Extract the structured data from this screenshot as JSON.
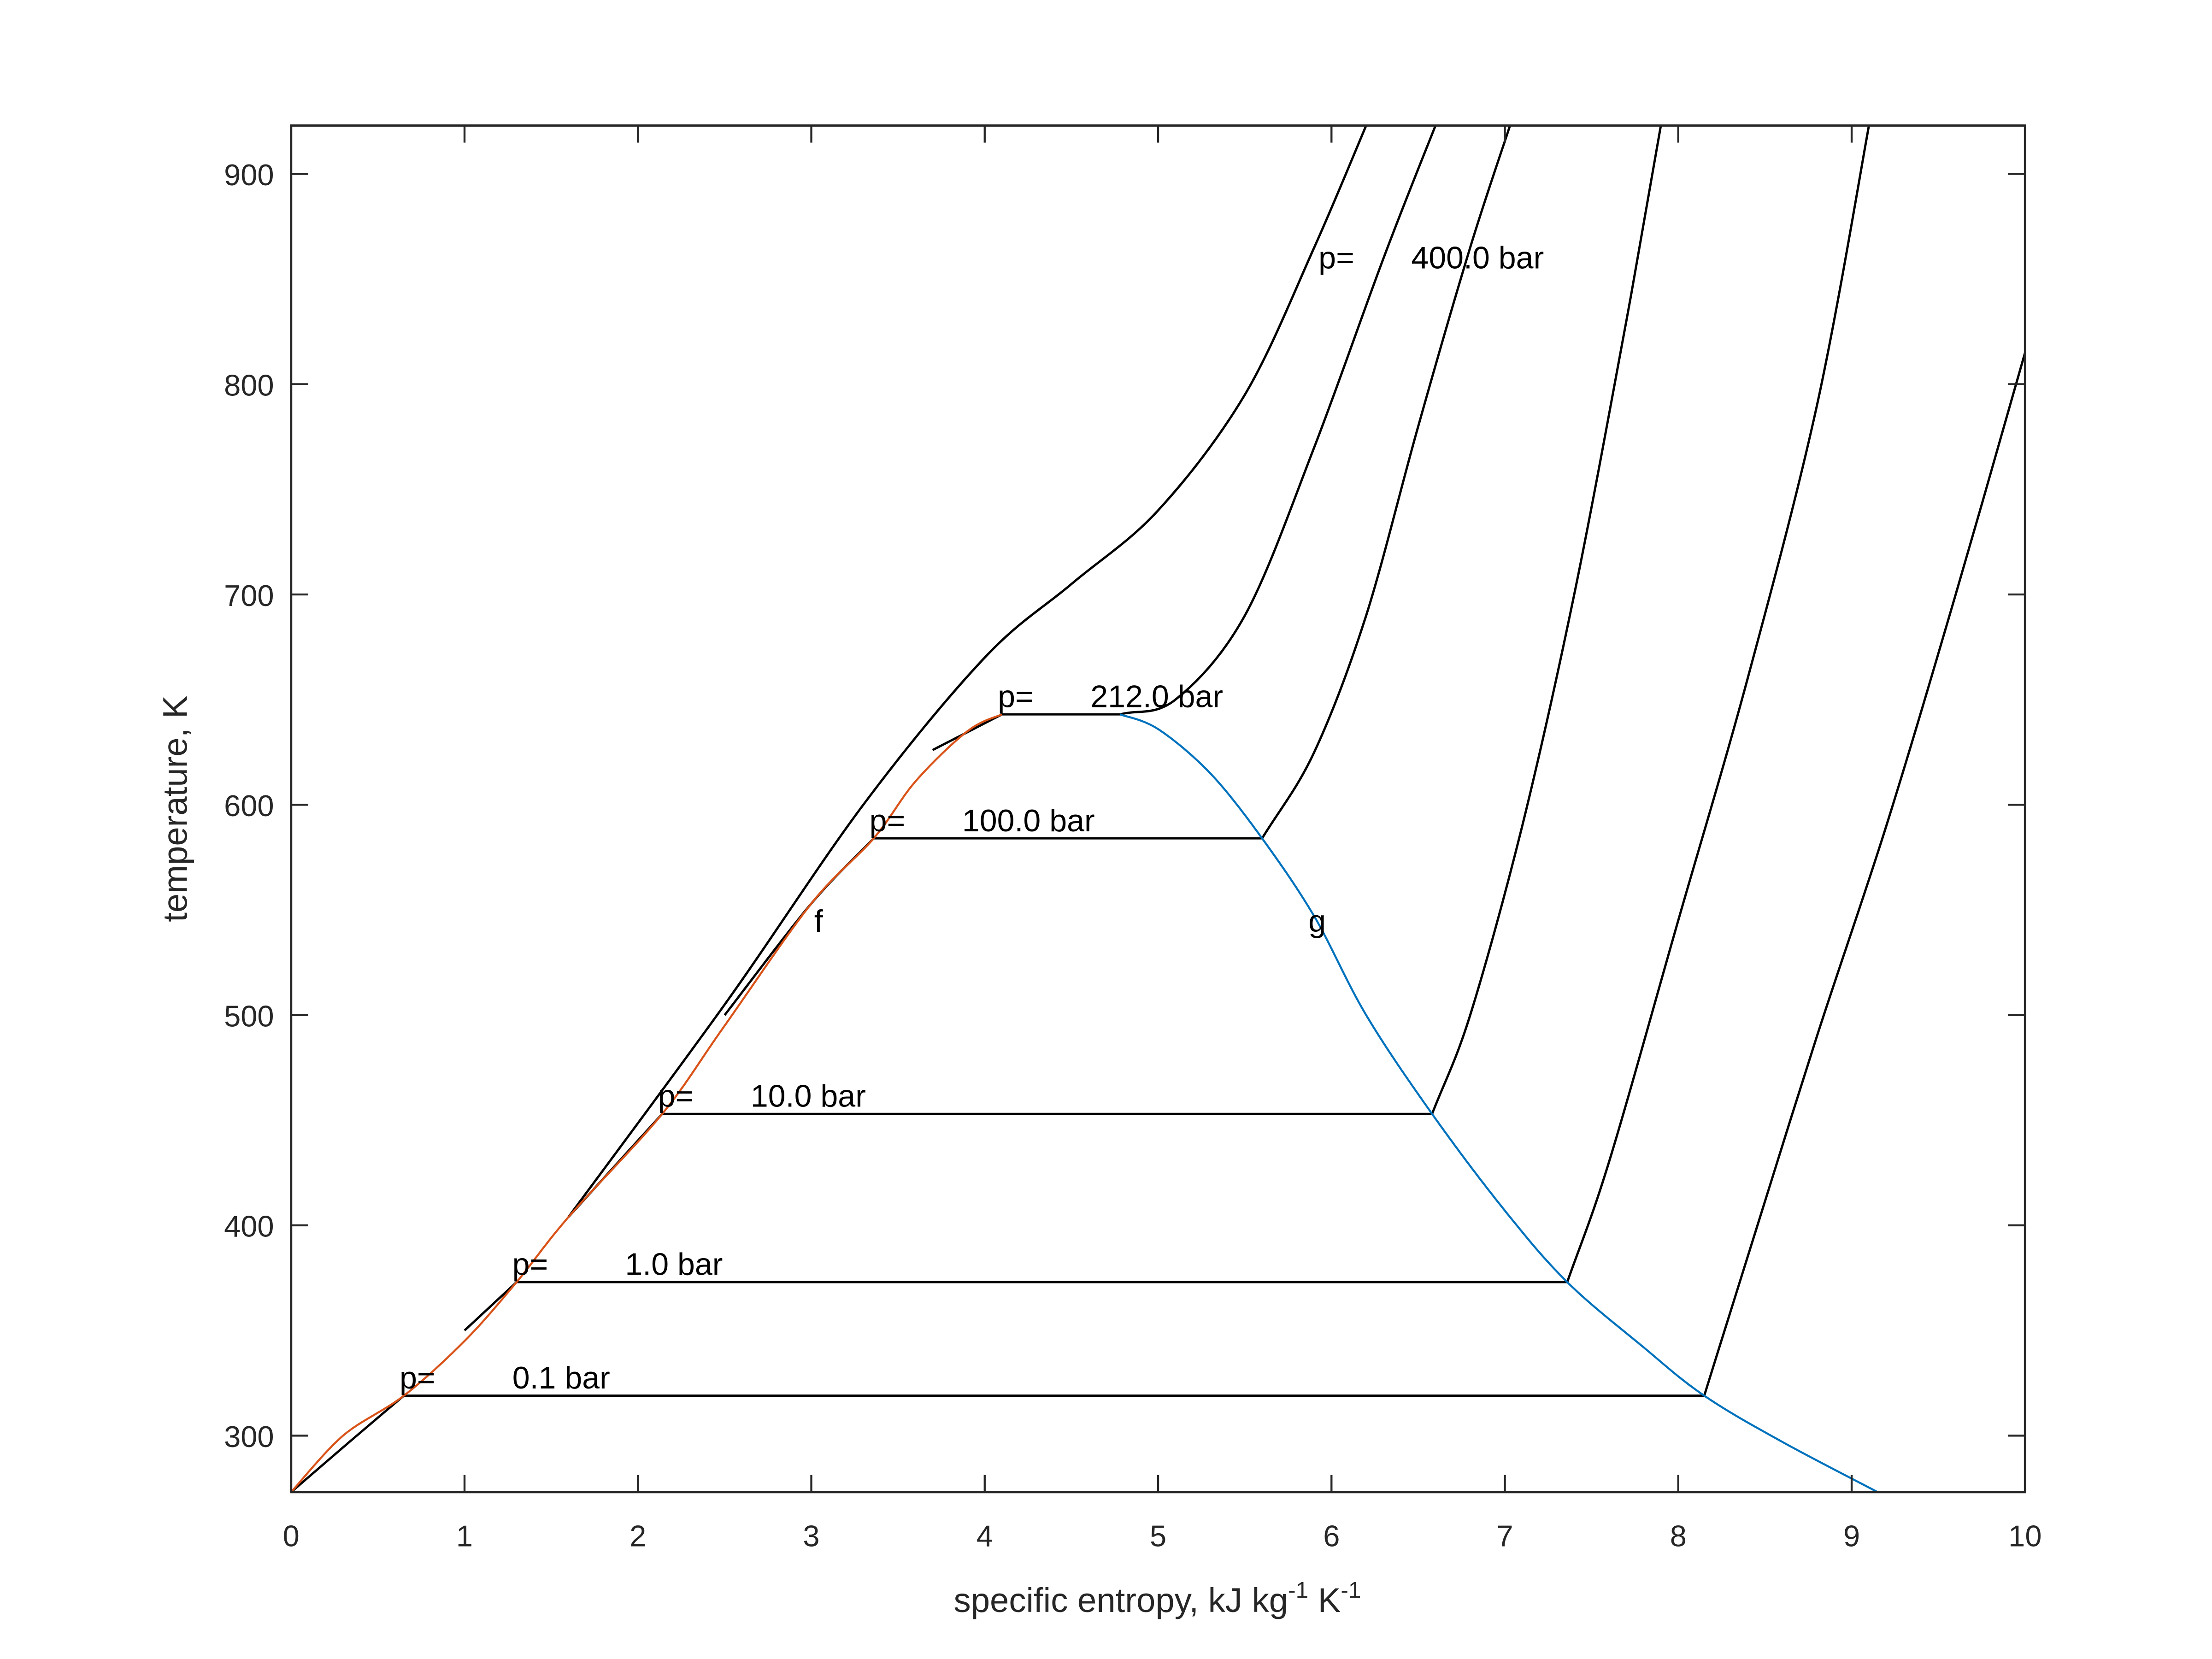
{
  "chart_data": {
    "type": "line",
    "title": "",
    "xlabel": "specific entropy, kJ kg^-1 K^-1",
    "xlabel_parts": {
      "base": "specific entropy, kJ kg",
      "sup1": "-1",
      "mid": " K",
      "sup2": "-1"
    },
    "ylabel": "temperature, K",
    "xlim": [
      0,
      10
    ],
    "ylim": [
      273.15,
      923
    ],
    "grid": false,
    "xticks": [
      0,
      1,
      2,
      3,
      4,
      5,
      6,
      7,
      8,
      9,
      10
    ],
    "yticks": [
      300,
      400,
      500,
      600,
      700,
      800,
      900
    ],
    "colors": {
      "liquid": "#D95319",
      "vapor": "#0072BD",
      "isobar": "#000000",
      "axes": "#262626"
    },
    "series": [
      {
        "name": "saturated liquid line (f)",
        "color": "#D95319",
        "x": [
          0.0,
          0.3,
          0.65,
          1.0,
          1.3,
          1.6,
          2.14,
          2.5,
          3.0,
          3.36,
          3.6,
          3.9,
          4.1
        ],
        "y": [
          273.15,
          300,
          319,
          345,
          373,
          404,
          453,
          495,
          553,
          584,
          611,
          635,
          643
        ]
      },
      {
        "name": "saturated vapor line (g)",
        "color": "#0072BD",
        "x": [
          4.78,
          5.0,
          5.3,
          5.6,
          5.9,
          6.2,
          6.58,
          7.0,
          7.36,
          7.8,
          8.15,
          8.6,
          9.15
        ],
        "y": [
          643,
          636,
          615,
          584,
          547,
          500,
          453,
          407,
          373,
          342,
          319,
          297,
          273.15
        ]
      },
      {
        "name": "isobar 0.1 bar",
        "label": {
          "prefix": "p=",
          "value": "0.1 bar"
        },
        "color": "#000000",
        "x": [
          0.0,
          0.35,
          0.65,
          8.15,
          8.4,
          8.8,
          9.2,
          9.6,
          10.0
        ],
        "y": [
          273.15,
          298,
          319,
          319,
          385,
          490,
          590,
          700,
          815
        ]
      },
      {
        "name": "isobar 1.0 bar",
        "label": {
          "prefix": "p=",
          "value": "1.0 bar"
        },
        "color": "#000000",
        "x": [
          1.0,
          1.3,
          7.36,
          7.6,
          8.0,
          8.4,
          8.8,
          9.1
        ],
        "y": [
          350,
          373,
          373,
          430,
          545,
          660,
          790,
          923
        ]
      },
      {
        "name": "isobar 10.0 bar",
        "label": {
          "prefix": "p=",
          "value": "10.0 bar"
        },
        "color": "#000000",
        "x": [
          1.6,
          2.14,
          6.58,
          6.8,
          7.1,
          7.4,
          7.7,
          7.9
        ],
        "y": [
          404,
          453,
          453,
          500,
          590,
          700,
          830,
          923
        ]
      },
      {
        "name": "isobar 100.0 bar",
        "label": {
          "prefix": "p=",
          "value": "100.0 bar"
        },
        "color": "#000000",
        "x": [
          2.5,
          3.0,
          3.36,
          5.6,
          5.9,
          6.2,
          6.5,
          6.8,
          7.03
        ],
        "y": [
          500,
          553,
          584,
          584,
          625,
          690,
          780,
          865,
          923
        ]
      },
      {
        "name": "isobar 212.0 bar",
        "label": {
          "prefix": "p=",
          "value": "212.0 bar"
        },
        "color": "#000000",
        "x": [
          3.7,
          4.1,
          4.78,
          5.1,
          5.5,
          5.9,
          6.3,
          6.6
        ],
        "y": [
          626,
          643,
          643,
          650,
          690,
          770,
          860,
          923
        ]
      },
      {
        "name": "isobar 400.0 bar",
        "label": {
          "prefix": "p=",
          "value": "400.0 bar"
        },
        "color": "#000000",
        "x": [
          1.6,
          2.5,
          3.3,
          4.0,
          4.5,
          5.0,
          5.5,
          5.9,
          6.2
        ],
        "y": [
          404,
          505,
          600,
          670,
          705,
          740,
          795,
          865,
          923
        ]
      }
    ],
    "annotations": [
      {
        "text": "f",
        "x": 3.05,
        "y": 545
      },
      {
        "text": "g",
        "x": 5.9,
        "y": 545
      }
    ]
  }
}
